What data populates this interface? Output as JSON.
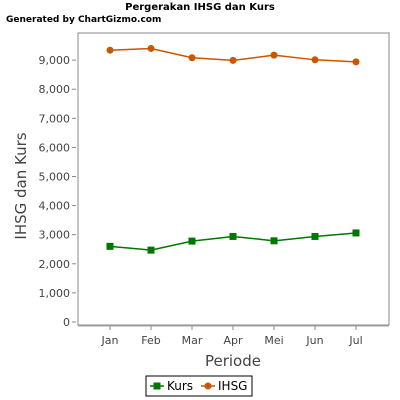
{
  "chart_data": {
    "type": "line",
    "title": "Pergerakan IHSG dan Kurs",
    "credit": "Generated by ChartGizmo.com",
    "xlabel": "Periode",
    "ylabel": "IHSG dan Kurs",
    "categories": [
      "Jan",
      "Feb",
      "Mar",
      "Apr",
      "Mei",
      "Jun",
      "Jul"
    ],
    "y_ticks": [
      "0",
      "1,000",
      "2,000",
      "3,000",
      "4,000",
      "5,000",
      "6,000",
      "7,000",
      "8,000",
      "9,000"
    ],
    "y_tick_values": [
      0,
      1000,
      2000,
      3000,
      4000,
      5000,
      6000,
      7000,
      8000,
      9000
    ],
    "ylim": [
      0,
      9900
    ],
    "grid": false,
    "legend_position": "bottom",
    "series": [
      {
        "name": "Kurs",
        "color": "#007700",
        "marker": "square",
        "values": [
          2600,
          2470,
          2780,
          2940,
          2790,
          2940,
          3060
        ]
      },
      {
        "name": "IHSG",
        "color": "#cc5500",
        "marker": "circle",
        "values": [
          9340,
          9400,
          9080,
          8990,
          9170,
          9010,
          8940
        ]
      }
    ]
  }
}
